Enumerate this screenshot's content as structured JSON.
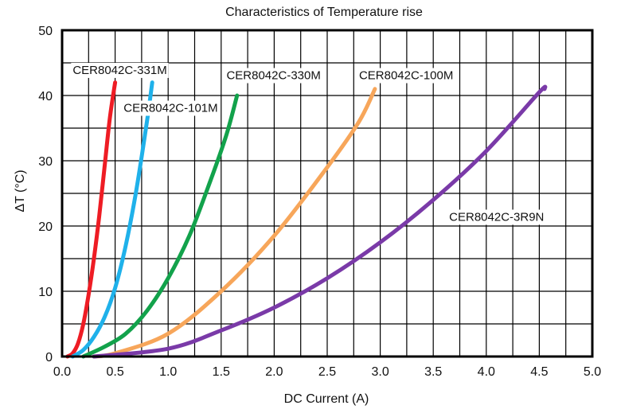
{
  "chart_data": {
    "type": "line",
    "title": "Characteristics of Temperature rise",
    "xlabel": "DC Current (A)",
    "ylabel": "ΔT (°C)",
    "xlim": [
      0,
      5
    ],
    "ylim": [
      0,
      50
    ],
    "x_ticks": [
      0.0,
      0.5,
      1.0,
      1.5,
      2.0,
      2.5,
      3.0,
      3.5,
      4.0,
      4.5,
      5.0
    ],
    "y_ticks": [
      0,
      10,
      20,
      30,
      40,
      50
    ],
    "x_tick_labels": [
      "0.0",
      "0.5",
      "1.0",
      "1.5",
      "2.0",
      "2.5",
      "3.0",
      "3.5",
      "4.0",
      "4.5",
      "5.0"
    ],
    "y_tick_labels": [
      "0",
      "10",
      "20",
      "30",
      "40",
      "50"
    ],
    "grid": true,
    "legend": "inline labels",
    "series": [
      {
        "name": "CER8042C-331M",
        "color": "#ee1c24",
        "points": [
          [
            0.05,
            0
          ],
          [
            0.1,
            0.5
          ],
          [
            0.15,
            2
          ],
          [
            0.2,
            5
          ],
          [
            0.25,
            9.5
          ],
          [
            0.3,
            15
          ],
          [
            0.35,
            21.5
          ],
          [
            0.4,
            29
          ],
          [
            0.45,
            36.5
          ],
          [
            0.5,
            42
          ]
        ]
      },
      {
        "name": "CER8042C-101M",
        "color": "#1fb1ea",
        "points": [
          [
            0.1,
            0
          ],
          [
            0.2,
            1
          ],
          [
            0.3,
            3
          ],
          [
            0.4,
            6
          ],
          [
            0.5,
            10.5
          ],
          [
            0.6,
            17
          ],
          [
            0.7,
            25.5
          ],
          [
            0.8,
            36
          ],
          [
            0.85,
            42
          ]
        ]
      },
      {
        "name": "CER8042C-330M",
        "color": "#12a24b",
        "points": [
          [
            0.2,
            0
          ],
          [
            0.4,
            1.5
          ],
          [
            0.6,
            3.5
          ],
          [
            0.8,
            7
          ],
          [
            1.0,
            12
          ],
          [
            1.2,
            18.5
          ],
          [
            1.4,
            27
          ],
          [
            1.55,
            34
          ],
          [
            1.65,
            40
          ]
        ]
      },
      {
        "name": "CER8042C-100M",
        "color": "#f7a65a",
        "points": [
          [
            0.3,
            0
          ],
          [
            0.5,
            0.5
          ],
          [
            1.0,
            3.5
          ],
          [
            1.5,
            10
          ],
          [
            2.0,
            18.5
          ],
          [
            2.5,
            29
          ],
          [
            2.8,
            36
          ],
          [
            2.95,
            41
          ]
        ]
      },
      {
        "name": "CER8042C-3R9N",
        "color": "#7a3aa8",
        "points": [
          [
            0.3,
            0
          ],
          [
            1.0,
            1.2
          ],
          [
            1.5,
            4
          ],
          [
            2.0,
            7.5
          ],
          [
            2.5,
            12
          ],
          [
            3.0,
            17.5
          ],
          [
            3.5,
            24
          ],
          [
            4.0,
            31.5
          ],
          [
            4.5,
            40.5
          ],
          [
            4.55,
            41
          ]
        ]
      }
    ],
    "annotations": [
      {
        "text": "CER8042C-331M",
        "x": 0.1,
        "y": 43.3
      },
      {
        "text": "CER8042C-101M",
        "x": 0.58,
        "y": 37.5
      },
      {
        "text": "CER8042C-330M",
        "x": 1.55,
        "y": 42.5
      },
      {
        "text": "CER8042C-100M",
        "x": 2.8,
        "y": 42.5
      },
      {
        "text": "CER8042C-3R9N",
        "x": 3.65,
        "y": 20.8
      }
    ]
  }
}
